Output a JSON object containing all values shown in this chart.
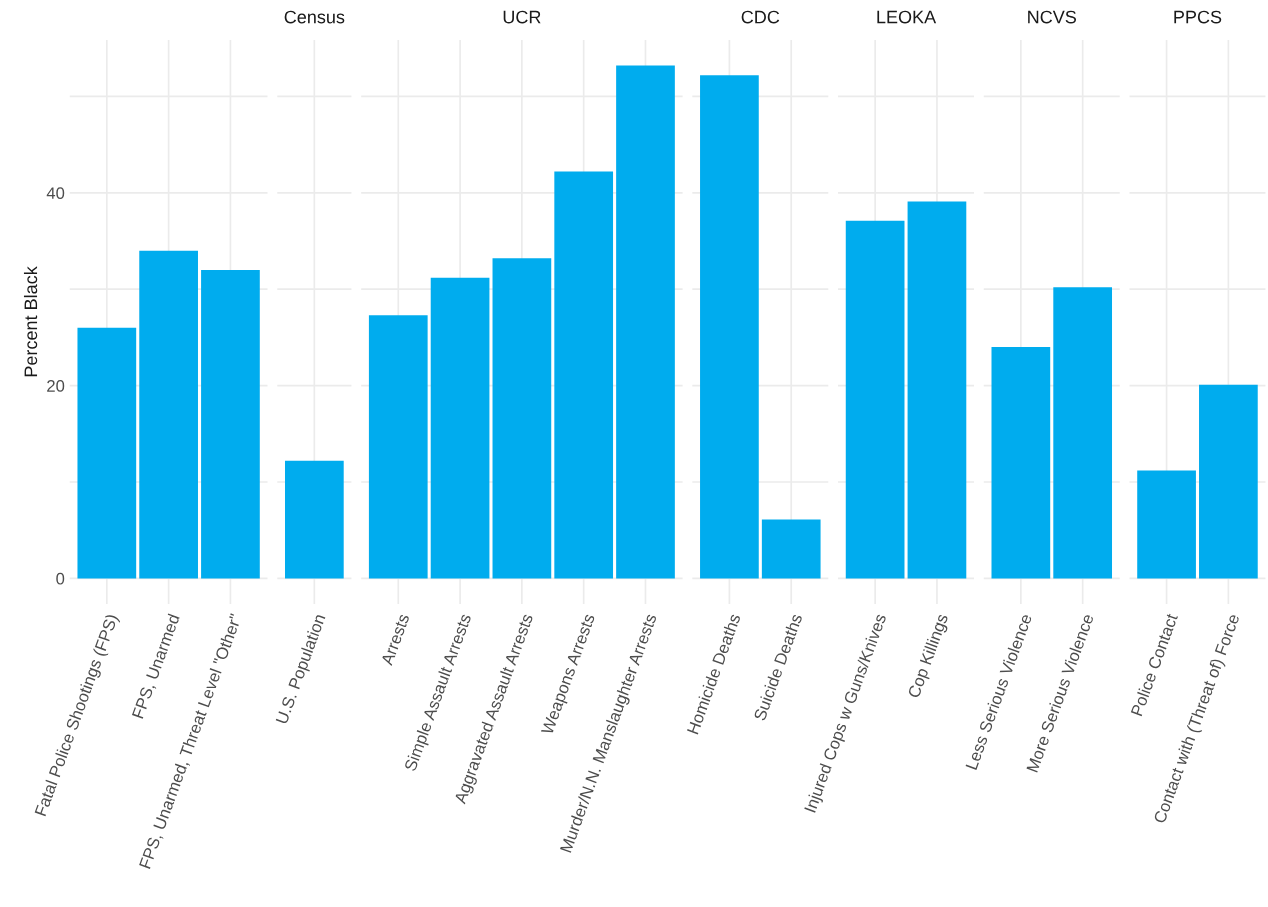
{
  "chart_data": [
    {
      "type": "bar",
      "ylabel": "Percent Black",
      "categories": [
        "Fatal Police Shootings (FPS)",
        "FPS, Unarmed",
        "FPS, Unarmed, Threat Level \"Other\""
      ],
      "values": [
        26,
        34,
        32
      ],
      "color": "#00acee",
      "ylim": [
        -2.66,
        55.86
      ],
      "yticks": [
        0,
        {
          "value": 10,
          "label": null
        },
        20,
        {
          "value": 30,
          "label": null
        },
        40,
        {
          "value": 50,
          "label": null
        }
      ],
      "grid": true
    },
    {
      "type": "bar",
      "title": "Census",
      "categories": [
        "U.S. Population"
      ],
      "values": [
        12.2
      ],
      "color": "#00acee",
      "ylim": [
        -2.66,
        55.86
      ],
      "yticks": [
        0,
        {
          "value": 10,
          "label": null
        },
        20,
        {
          "value": 30,
          "label": null
        },
        40,
        {
          "value": 50,
          "label": null
        }
      ],
      "grid": true,
      "tick_labels": "x"
    },
    {
      "type": "bar",
      "title": "UCR",
      "categories": [
        "Arrests",
        "Simple Assault Arrests",
        "Aggravated Assault Arrests",
        "Weapons Arrests",
        "Murder/N.N. Manslaughter Arrests"
      ],
      "values": [
        27.3,
        31.2,
        33.2,
        42.2,
        53.2
      ],
      "color": "#00acee",
      "ylim": [
        -2.66,
        55.86
      ],
      "yticks": [
        0,
        {
          "value": 10,
          "label": null
        },
        20,
        {
          "value": 30,
          "label": null
        },
        40,
        {
          "value": 50,
          "label": null
        }
      ],
      "grid": true,
      "tick_labels": "x"
    },
    {
      "type": "bar",
      "title": "CDC",
      "categories": [
        "Homicide Deaths",
        "Suicide Deaths"
      ],
      "values": [
        52.2,
        6.1
      ],
      "color": "#00acee",
      "ylim": [
        -2.66,
        55.86
      ],
      "yticks": [
        0,
        {
          "value": 10,
          "label": null
        },
        20,
        {
          "value": 30,
          "label": null
        },
        40,
        {
          "value": 50,
          "label": null
        }
      ],
      "grid": true,
      "tick_labels": "x"
    },
    {
      "type": "bar",
      "title": "LEOKA",
      "categories": [
        "Injured Cops w Guns/Knives",
        "Cop Killings"
      ],
      "values": [
        37.1,
        39.1
      ],
      "color": "#00acee",
      "ylim": [
        -2.66,
        55.86
      ],
      "yticks": [
        0,
        {
          "value": 10,
          "label": null
        },
        20,
        {
          "value": 30,
          "label": null
        },
        40,
        {
          "value": 50,
          "label": null
        }
      ],
      "grid": true,
      "tick_labels": "x"
    },
    {
      "type": "bar",
      "title": "NCVS",
      "categories": [
        "Less Serious Violence",
        "More Serious Violence"
      ],
      "values": [
        24,
        30.2
      ],
      "color": "#00acee",
      "ylim": [
        -2.66,
        55.86
      ],
      "yticks": [
        0,
        {
          "value": 10,
          "label": null
        },
        20,
        {
          "value": 30,
          "label": null
        },
        40,
        {
          "value": 50,
          "label": null
        }
      ],
      "grid": true,
      "tick_labels": "x"
    },
    {
      "type": "bar",
      "title": "PPCS",
      "categories": [
        "Police Contact",
        "Contact with (Threat of) Force"
      ],
      "values": [
        11.2,
        20.1
      ],
      "color": "#00acee",
      "ylim": [
        -2.66,
        55.86
      ],
      "yticks": [
        0,
        {
          "value": 10,
          "label": null
        },
        20,
        {
          "value": 30,
          "label": null
        },
        40,
        {
          "value": 50,
          "label": null
        }
      ],
      "grid": true,
      "tick_labels": "x"
    }
  ]
}
